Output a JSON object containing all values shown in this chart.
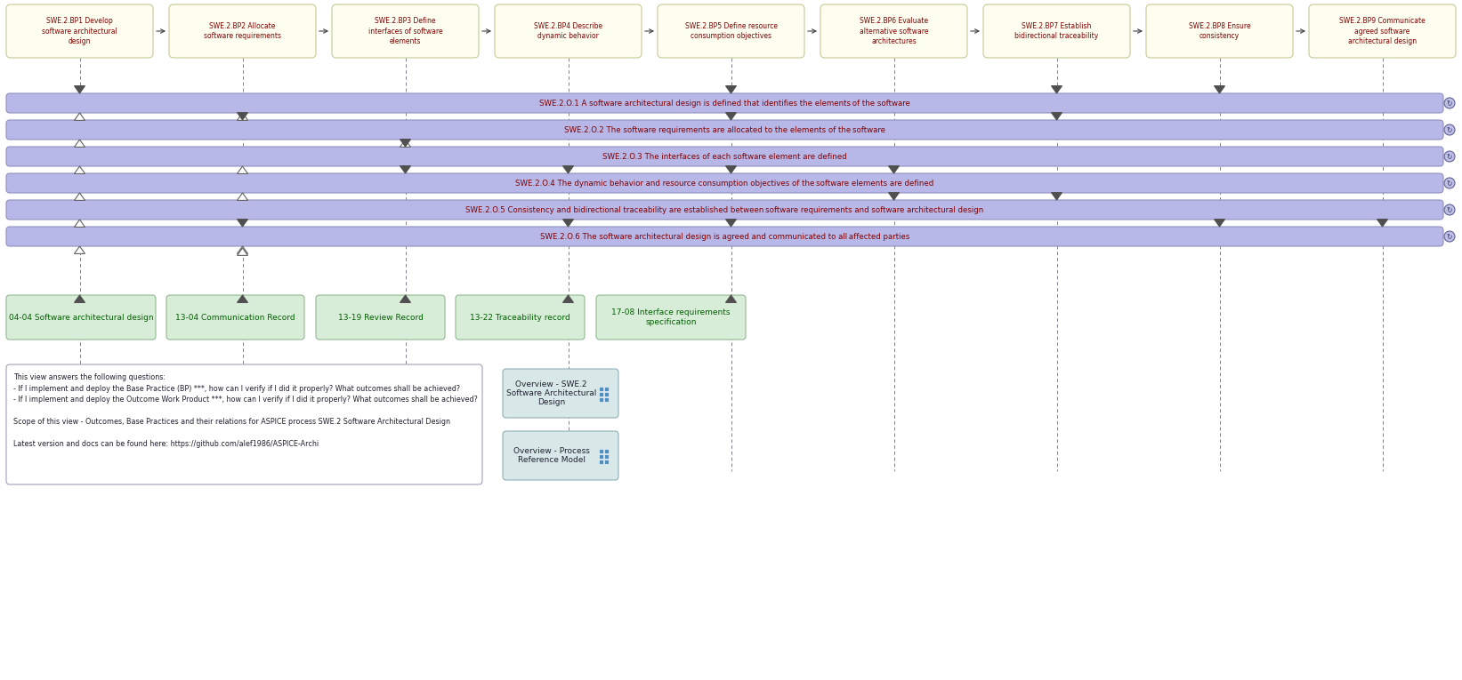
{
  "bg_color": "#ffffff",
  "bp_boxes": [
    {
      "label": "SWE.2.BP1 Develop\nsoftware architectural\ndesign"
    },
    {
      "label": "SWE.2.BP2 Allocate\nsoftware requirements"
    },
    {
      "label": "SWE.2.BP3 Define\ninterfaces of software\nelements"
    },
    {
      "label": "SWE.2.BP4 Describe\ndynamic behavior"
    },
    {
      "label": "SWE.2.BP5 Define resource\nconsumption objectives"
    },
    {
      "label": "SWE.2.BP6 Evaluate\nalternative software\narchitectures"
    },
    {
      "label": "SWE.2.BP7 Establish\nbidirectional traceability"
    },
    {
      "label": "SWE.2.BP8 Ensure\nconsistency"
    },
    {
      "label": "SWE.2.BP9 Communicate\nagreed software\narchitectural design"
    }
  ],
  "outcomes": [
    "SWE.2.O.1 A software architectural design is defined that identifies the elements of the software",
    "SWE.2.O.2 The software requirements are allocated to the elements of the software",
    "SWE.2.O.3 The interfaces of each software element are defined",
    "SWE.2.O.4 The dynamic behavior and resource consumption objectives of the software elements are defined",
    "SWE.2.O.5 Consistency and bidirectional traceability are established between software requirements and software architectural design",
    "SWE.2.O.6 The software architectural design is agreed and communicated to all affected parties"
  ],
  "work_products": [
    {
      "label": "04-04 Software architectural design"
    },
    {
      "label": "13-04 Communication Record"
    },
    {
      "label": "13-19 Review Record"
    },
    {
      "label": "13-22 Traceability record"
    },
    {
      "label": "17-08 Interface requirements\nspecification"
    }
  ],
  "bp_fill": "#fefef0",
  "bp_edge": "#c8c896",
  "outcome_fill": "#b8b8e8",
  "outcome_edge": "#9090c0",
  "wp_fill": "#d8edd8",
  "wp_edge": "#90b890",
  "info_fill": "#ffffff",
  "info_edge": "#a0a0b8",
  "ov_fill": "#d8e8e8",
  "ov_edge": "#90b0b8",
  "dashed_color": "#808090",
  "tri_filled": "#505050",
  "tri_hollow_face": "#ffffff",
  "tri_hollow_edge": "#606060",
  "text_bp": "#800000",
  "text_outcome": "#800000",
  "text_wp": "#006000",
  "text_info": "#202030",
  "text_ov": "#202030",
  "arrow_between_bp": "#404040",
  "down_tri_per_outcome": [
    [
      0,
      4,
      6,
      7
    ],
    [
      1,
      4,
      6
    ],
    [
      2
    ],
    [
      2,
      3,
      4,
      5
    ],
    [
      5,
      6
    ],
    [
      1,
      3,
      4,
      7,
      8
    ]
  ],
  "up_tri_per_outcome": [
    [
      0,
      1
    ],
    [
      0,
      2
    ],
    [
      0,
      1
    ],
    [
      0,
      1
    ],
    [
      0
    ],
    [
      0,
      1
    ]
  ],
  "wp_up_tri_at_bp": [
    0,
    1,
    3,
    4,
    2
  ],
  "wp_down_tri_at_bp": [
    0,
    1,
    3,
    4,
    2
  ],
  "info_text": "This view answers the following questions:\n- If I implement and deploy the Base Practice (BP) ***, how can I verify if I did it properly? What outcomes shall be achieved?\n- If I implement and deploy the Outcome Work Product ***, how can I verify if I did it properly? What outcomes shall be achieved?\n\nScope of this view - Outcomes, Base Practices and their relations for ASPICE process SWE.2 Software Architectural Design\n\nLatest version and docs can be found here: https://github.com/alef1986/ASPICE-Archi",
  "ov1_text": "Overview - SWE.2\nSoftware Architectural\nDesign",
  "ov2_text": "Overview - Process\nReference Model"
}
